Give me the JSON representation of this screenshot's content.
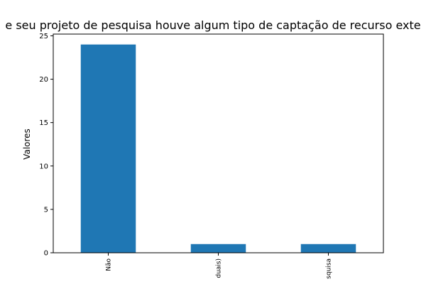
{
  "chart_data": {
    "type": "bar",
    "title": "e seu projeto de pesquisa houve algum tipo de captação de recurso exte",
    "xlabel": "",
    "ylabel": "Valores",
    "categories": [
      "Não",
      "duais)",
      "squisa"
    ],
    "values": [
      24,
      1,
      1
    ],
    "yticks": [
      0,
      5,
      10,
      15,
      20,
      25
    ],
    "ylim": [
      0,
      25.2
    ],
    "bar_color": "#1f77b4",
    "grid": false,
    "legend": "none"
  }
}
